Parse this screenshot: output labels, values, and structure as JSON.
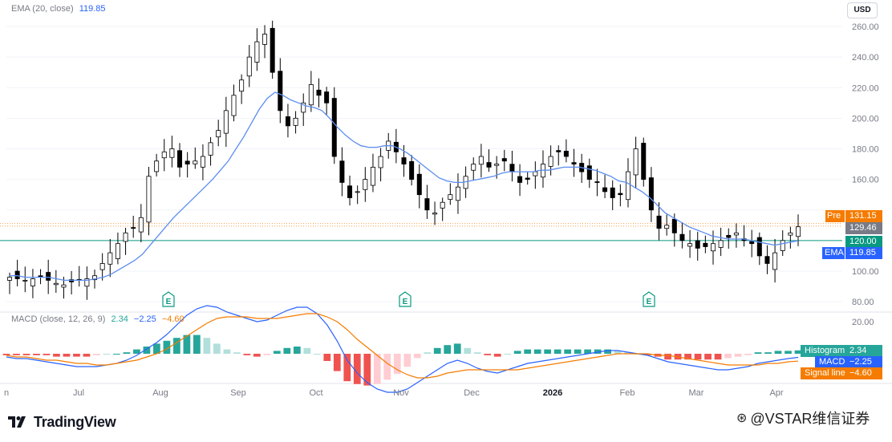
{
  "legend": {
    "ema": {
      "label": "EMA (20, close)",
      "value": "119.85"
    },
    "macd": {
      "label": "MACD (close, 12, 26, 9)",
      "histogram": "2.34",
      "macd": "−2.25",
      "signal": "−4.60"
    }
  },
  "currency": "USD",
  "price_scale": {
    "upper_ticks": [
      "260.00",
      "240.00",
      "220.00",
      "200.00",
      "180.00",
      "160.00",
      "100.00",
      "80.00"
    ],
    "lower_ticks": [
      "20.00"
    ]
  },
  "price_labels": [
    {
      "label": "Pre",
      "value": "131.15",
      "color": "#f57c00"
    },
    {
      "label": "",
      "value": "129.46",
      "color": "#787b86"
    },
    {
      "label": "",
      "value": "120.00",
      "color": "#089981"
    },
    {
      "label": "EMA",
      "value": "119.85",
      "color": "#2962ff"
    }
  ],
  "macd_labels": [
    {
      "label": "Histogram",
      "value": "2.34",
      "color": "#26a69a"
    },
    {
      "label": "MACD",
      "value": "−2.25",
      "color": "#2962ff"
    },
    {
      "label": "Signal line",
      "value": "−4.60",
      "color": "#f57c00"
    }
  ],
  "x_axis": [
    "Jul",
    "Aug",
    "Sep",
    "Oct",
    "Nov",
    "Dec",
    "2026",
    "Feb",
    "Mar",
    "Apr"
  ],
  "x_axis_partial": "n",
  "earnings_marker": "E",
  "brand": "TradingView",
  "watermark": "@VSTAR维信证券",
  "colors": {
    "up": "#ffffff",
    "down": "#000000",
    "ema": "#5b8def",
    "macd": "#2962ff",
    "signal": "#f57c00",
    "hist_pos": "#26a69a",
    "hist_pos_light": "#b2dfdb",
    "hist_neg": "#ef5350",
    "hist_neg_light": "#ffcdd2",
    "hline": "#089981",
    "pre_line": "#f57c00"
  },
  "chart_data": {
    "type": "candlestick",
    "price_range": [
      80,
      262
    ],
    "horizontal_lines": [
      {
        "value": 120.0,
        "style": "solid"
      },
      {
        "value": 131.15,
        "style": "dotted"
      },
      {
        "value": 129.46,
        "style": "dotted"
      }
    ],
    "weekly_close": [
      96,
      95,
      94,
      95,
      96,
      94,
      92,
      91,
      93,
      94,
      95,
      97,
      105,
      112,
      118,
      125,
      128,
      135,
      162,
      172,
      178,
      180,
      168,
      170,
      172,
      175,
      184,
      192,
      205,
      215,
      225,
      240,
      250,
      255,
      230,
      205,
      195,
      200,
      210,
      222,
      215,
      210,
      175,
      158,
      148,
      152,
      160,
      168,
      175,
      185,
      178,
      170,
      160,
      150,
      140,
      138,
      145,
      150,
      155,
      162,
      170,
      175,
      168,
      170,
      172,
      165,
      158,
      160,
      165,
      170,
      175,
      178,
      175,
      170,
      165,
      160,
      158,
      152,
      148,
      150,
      165,
      180,
      160,
      140,
      128,
      130,
      125,
      120,
      118,
      115,
      116,
      118,
      120,
      122,
      125,
      120,
      118,
      110,
      105,
      112,
      120,
      125,
      129
    ],
    "ema": [
      97,
      97,
      96,
      96,
      96,
      96,
      95,
      94,
      94,
      94,
      94,
      95,
      96,
      98,
      101,
      104,
      107,
      111,
      117,
      123,
      129,
      135,
      140,
      145,
      150,
      155,
      160,
      166,
      172,
      180,
      188,
      197,
      206,
      213,
      217,
      215,
      212,
      210,
      208,
      207,
      205,
      200,
      194,
      189,
      185,
      182,
      181,
      181,
      182,
      182,
      180,
      177,
      173,
      169,
      165,
      161,
      159,
      158,
      158,
      159,
      160,
      161,
      162,
      164,
      165,
      165,
      165,
      165,
      166,
      166,
      167,
      168,
      168,
      168,
      167,
      166,
      164,
      162,
      159,
      158,
      155,
      152,
      148,
      143,
      138,
      135,
      132,
      129,
      127,
      125,
      123,
      122,
      121,
      121,
      121,
      120,
      119,
      118,
      117,
      118,
      119,
      119.85
    ],
    "macd": [
      -2,
      -3,
      -3,
      -4,
      -5,
      -6,
      -7,
      -8,
      -8,
      -8,
      -7,
      -6,
      -4,
      -1,
      3,
      7,
      12,
      18,
      24,
      28,
      30,
      29,
      26,
      24,
      22,
      20,
      21,
      24,
      27,
      29,
      29,
      25,
      18,
      8,
      -4,
      -12,
      -18,
      -22,
      -24,
      -24,
      -22,
      -18,
      -14,
      -10,
      -6,
      -4,
      -6,
      -9,
      -11,
      -12,
      -10,
      -8,
      -6,
      -5,
      -4,
      -3,
      -2,
      -1,
      0,
      1,
      2,
      2,
      1,
      0,
      -1,
      -3,
      -5,
      -6,
      -7,
      -8,
      -9,
      -10,
      -10,
      -9,
      -8,
      -6,
      -5,
      -4,
      -3,
      -2.25
    ],
    "signal": [
      -1,
      -2,
      -2,
      -3,
      -4,
      -4,
      -5,
      -6,
      -6,
      -7,
      -7,
      -6,
      -5,
      -4,
      -2,
      0,
      3,
      7,
      11,
      15,
      19,
      22,
      23,
      23,
      23,
      22,
      22,
      22,
      23,
      24,
      25,
      25,
      23,
      20,
      15,
      9,
      4,
      -1,
      -6,
      -10,
      -13,
      -15,
      -15,
      -14,
      -12,
      -11,
      -10,
      -10,
      -10,
      -10,
      -10,
      -10,
      -9,
      -8,
      -7,
      -6,
      -5,
      -4,
      -3,
      -2,
      -1,
      0,
      0,
      0,
      0,
      -1,
      -1,
      -2,
      -3,
      -4,
      -5,
      -6,
      -7,
      -7,
      -7,
      -7,
      -6,
      -6,
      -5,
      -4.6
    ]
  }
}
